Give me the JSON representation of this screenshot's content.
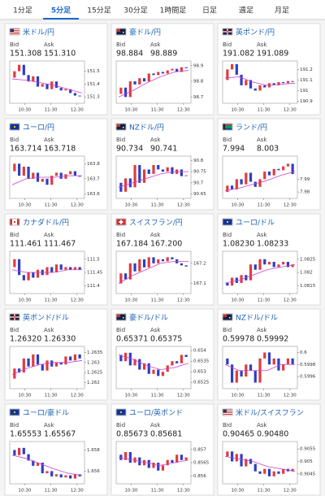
{
  "tabs": [
    "1分足",
    "5分足",
    "15分足",
    "30分足",
    "1時間足",
    "日足",
    "週足",
    "月足"
  ],
  "active_tab": 1,
  "bid_label": "Bid",
  "ask_label": "Ask",
  "xlabels": [
    "10:30",
    "11:30",
    "12:30"
  ],
  "cards": [
    {
      "name": "米ドル/円",
      "bid": "151.308",
      "ask": "151.310",
      "ylim": [
        151.25,
        151.58
      ],
      "yticks": [
        151.5,
        151.4,
        151.3
      ],
      "values": [
        151.45,
        151.5,
        151.55,
        151.47,
        151.42,
        151.46,
        151.38,
        151.4,
        151.36,
        151.42,
        151.37,
        151.35,
        151.36,
        151.33,
        151.31,
        151.308
      ],
      "ma": [
        151.44,
        151.43,
        151.41,
        151.39,
        151.36,
        151.33
      ]
    },
    {
      "name": "豪ドル/円",
      "bid": "98.884",
      "ask": "98.889",
      "ylim": [
        98.66,
        98.93
      ],
      "yticks": [
        98.9,
        98.8,
        98.7
      ],
      "values": [
        98.72,
        98.76,
        98.7,
        98.8,
        98.78,
        98.82,
        98.8,
        98.85,
        98.84,
        98.86,
        98.85,
        98.87,
        98.88,
        98.86,
        98.89,
        98.884
      ],
      "ma": [
        98.7,
        98.74,
        98.79,
        98.83,
        98.86,
        98.87
      ]
    },
    {
      "name": "英ポンド/円",
      "bid": "191.082",
      "ask": "191.089",
      "ylim": [
        190.88,
        191.28
      ],
      "yticks": [
        191.2,
        191.1,
        191,
        190.9
      ],
      "values": [
        191.1,
        191.2,
        191.25,
        191.15,
        191.05,
        191.1,
        191.02,
        191.0,
        191.05,
        191.03,
        191.07,
        191.05,
        191.08,
        191.07,
        191.09,
        191.082
      ],
      "ma": [
        191.12,
        191.13,
        191.08,
        191.05,
        191.06,
        191.07
      ]
    },
    {
      "name": "ユーロ/円",
      "bid": "163.714",
      "ask": "163.718",
      "ylim": [
        163.57,
        163.85
      ],
      "yticks": [
        163.8,
        163.7,
        163.6
      ],
      "values": [
        163.75,
        163.8,
        163.72,
        163.78,
        163.7,
        163.74,
        163.68,
        163.7,
        163.66,
        163.72,
        163.74,
        163.7,
        163.73,
        163.75,
        163.72,
        163.714
      ],
      "ma": [
        163.66,
        163.7,
        163.71,
        163.71,
        163.72,
        163.72
      ]
    },
    {
      "name": "NZドル/円",
      "bid": "90.734",
      "ask": "90.741",
      "ylim": [
        90.63,
        90.82
      ],
      "yticks": [
        90.8,
        90.75,
        90.7,
        90.65
      ],
      "values": [
        90.7,
        90.66,
        90.72,
        90.68,
        90.78,
        90.7,
        90.76,
        90.74,
        90.78,
        90.76,
        90.75,
        90.77,
        90.74,
        90.76,
        90.73,
        90.734
      ],
      "ma": [
        90.68,
        90.7,
        90.72,
        90.74,
        90.75,
        90.75
      ]
    },
    {
      "name": "ランド/円",
      "bid": "7.994",
      "ask": "8.003",
      "ylim": [
        7.975,
        8.008
      ],
      "yticks": [
        7.99,
        7.98
      ],
      "values": [
        7.98,
        7.985,
        7.982,
        7.99,
        7.986,
        7.995,
        7.988,
        7.984,
        7.99,
        7.996,
        7.993,
        7.998,
        7.997,
        8.0,
        8.002,
        7.994
      ],
      "ma": [
        7.981,
        7.983,
        7.986,
        7.989,
        7.993,
        7.996
      ]
    },
    {
      "name": "カナダドル/円",
      "bid": "111.461",
      "ask": "111.467",
      "ylim": [
        111.37,
        111.53
      ],
      "yticks": [
        111.5,
        111.45,
        111.4
      ],
      "values": [
        111.47,
        111.5,
        111.44,
        111.42,
        111.45,
        111.43,
        111.46,
        111.44,
        111.47,
        111.45,
        111.48,
        111.46,
        111.47,
        111.46,
        111.47,
        111.461
      ],
      "ma": [
        111.46,
        111.45,
        111.45,
        111.45,
        111.46,
        111.46
      ]
    },
    {
      "name": "スイスフラン/円",
      "bid": "167.184",
      "ask": "167.200",
      "ylim": [
        167.05,
        167.26
      ],
      "yticks": [
        167.2,
        167.1
      ],
      "values": [
        167.1,
        167.15,
        167.12,
        167.2,
        167.16,
        167.22,
        167.18,
        167.23,
        167.2,
        167.22,
        167.21,
        167.23,
        167.22,
        167.2,
        167.19,
        167.184
      ],
      "ma": [
        167.1,
        167.14,
        167.17,
        167.2,
        167.21,
        167.21
      ]
    },
    {
      "name": "ユーロ/ドル",
      "bid": "1.08230",
      "ask": "1.08233",
      "ylim": [
        1.0812,
        1.0828
      ],
      "yticks": [
        1.0825,
        1.082,
        1.0815
      ],
      "values": [
        1.0816,
        1.0815,
        1.0818,
        1.0816,
        1.0819,
        1.0817,
        1.0823,
        1.0821,
        1.0825,
        1.0823,
        1.0824,
        1.0822,
        1.0823,
        1.0824,
        1.0822,
        1.0823
      ],
      "ma": [
        1.0816,
        1.0817,
        1.0819,
        1.0821,
        1.0822,
        1.0823
      ]
    },
    {
      "name": "英ポンド/ドル",
      "bid": "1.26320",
      "ask": "1.26330",
      "ylim": [
        1.2617,
        1.2638
      ],
      "yticks": [
        1.2635,
        1.263,
        1.2625,
        1.262
      ],
      "values": [
        1.2622,
        1.2627,
        1.2625,
        1.2632,
        1.2628,
        1.2634,
        1.2629,
        1.2626,
        1.2631,
        1.2628,
        1.263,
        1.2629,
        1.2633,
        1.2631,
        1.2634,
        1.2632
      ],
      "ma": [
        1.2624,
        1.2627,
        1.2629,
        1.263,
        1.263,
        1.2631
      ]
    },
    {
      "name": "豪ドル/ドル",
      "bid": "0.65371",
      "ask": "0.65375",
      "ylim": [
        0.6522,
        0.6542
      ],
      "yticks": [
        0.654,
        0.6535,
        0.653,
        0.6525
      ],
      "values": [
        0.6538,
        0.6535,
        0.6539,
        0.6533,
        0.6536,
        0.6531,
        0.6534,
        0.6529,
        0.6531,
        0.6528,
        0.653,
        0.6533,
        0.6535,
        0.6534,
        0.6538,
        0.6537
      ],
      "ma": [
        0.6538,
        0.6536,
        0.6533,
        0.6531,
        0.6532,
        0.6534
      ]
    },
    {
      "name": "NZドル/ドル",
      "bid": "0.59978",
      "ask": "0.59992",
      "ylim": [
        0.5994,
        0.6001
      ],
      "yticks": [
        0.6,
        0.5998,
        0.5996
      ],
      "values": [
        0.5999,
        0.5998,
        0.5995,
        0.5997,
        0.5996,
        0.5998,
        0.5997,
        0.5995,
        0.5999,
        0.6,
        0.5998,
        0.5999,
        0.5997,
        0.5998,
        0.5999,
        0.5998
      ],
      "ma": [
        0.5998,
        0.5997,
        0.5997,
        0.5997,
        0.5998,
        0.5998
      ]
    },
    {
      "name": "ユーロ/豪ドル",
      "bid": "1.65553",
      "ask": "1.65567",
      "ylim": [
        1.6548,
        1.6588
      ],
      "yticks": [
        1.658,
        1.656
      ],
      "values": [
        1.658,
        1.6575,
        1.6582,
        1.6576,
        1.657,
        1.6565,
        1.6568,
        1.6558,
        1.656,
        1.6555,
        1.6557,
        1.6554,
        1.6556,
        1.6553,
        1.6557,
        1.6555
      ],
      "ma": [
        1.6575,
        1.6572,
        1.6567,
        1.6562,
        1.6558,
        1.6556
      ]
    },
    {
      "name": "ユーロ/英ポンド",
      "bid": "0.85673",
      "ask": "0.85681",
      "ylim": [
        0.8557,
        0.8573
      ],
      "yticks": [
        0.857,
        0.8565,
        0.856
      ],
      "values": [
        0.8568,
        0.8566,
        0.8569,
        0.8565,
        0.8567,
        0.8564,
        0.8566,
        0.8563,
        0.8565,
        0.8562,
        0.8564,
        0.8566,
        0.8565,
        0.8568,
        0.8566,
        0.8567
      ],
      "ma": [
        0.8567,
        0.8566,
        0.8565,
        0.8564,
        0.8565,
        0.8566
      ]
    },
    {
      "name": "米ドル/スイスフラン",
      "bid": "0.90465",
      "ask": "0.90480",
      "ylim": [
        0.9041,
        0.9058
      ],
      "yticks": [
        0.9055,
        0.905,
        0.9045
      ],
      "values": [
        0.9052,
        0.9054,
        0.905,
        0.9053,
        0.9048,
        0.9051,
        0.9049,
        0.9046,
        0.9045,
        0.9047,
        0.9044,
        0.9046,
        0.9045,
        0.9047,
        0.9046,
        0.9047
      ],
      "ma": [
        0.9052,
        0.9051,
        0.905,
        0.9048,
        0.9047,
        0.9046
      ]
    }
  ]
}
